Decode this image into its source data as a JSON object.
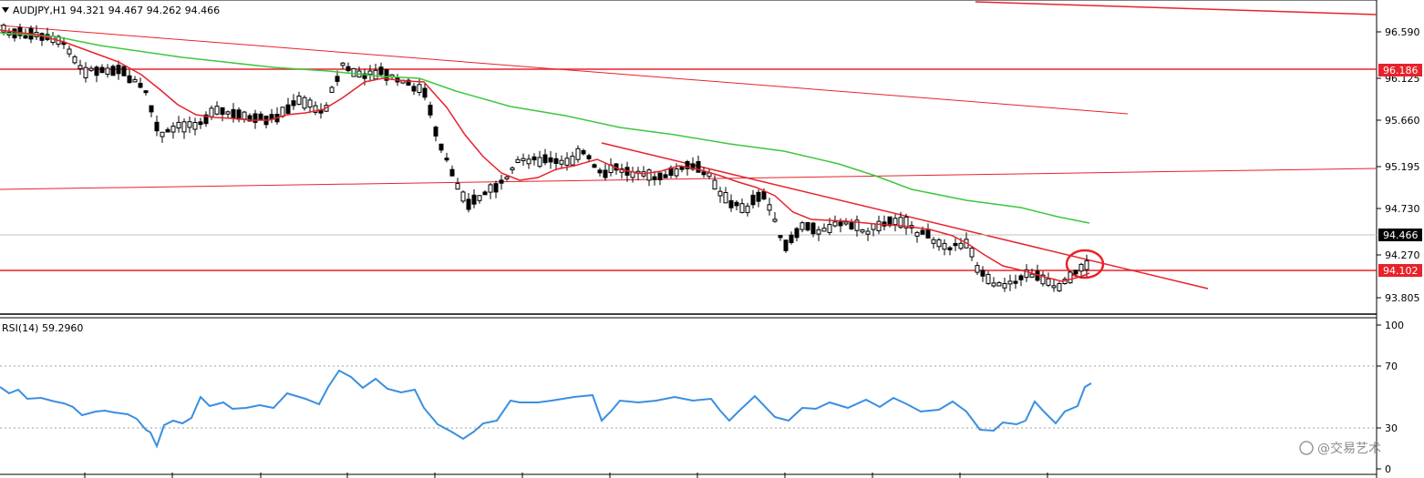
{
  "header": {
    "symbol_line": "AUDJPY,H1  94.321 94.467 94.262 94.466",
    "rsi_line": "RSI(14) 59.2960"
  },
  "watermark": "@交易艺术",
  "colors": {
    "background": "#ffffff",
    "candle_up_body": "#ffffff",
    "candle_down_body": "#000000",
    "ma_fast": "#e8222a",
    "ma_slow": "#3cc83c",
    "trend_lines": "#e8222a",
    "rsi_line": "#3a8fe0",
    "price_tag_bg": "#e8222a"
  },
  "chart_data": [
    {
      "type": "candlestick",
      "title": "AUDJPY,H1",
      "ylim": [
        93.65,
        96.98
      ],
      "yticks": [
        "96.590",
        "96.125",
        "95.660",
        "95.195",
        "94.730",
        "94.270",
        "93.805"
      ],
      "current_price": "94.466",
      "horizontal_levels": [
        "96.186",
        "94.102"
      ],
      "series_notes": [
        "moving average (red)",
        "moving average (green)"
      ]
    },
    {
      "type": "line",
      "title": "RSI(14) 59.2960",
      "ylim": [
        0,
        100
      ],
      "yticks": [
        "100",
        "70",
        "30",
        "0"
      ],
      "levels": [
        70,
        30
      ],
      "last_value": 59.296
    }
  ]
}
